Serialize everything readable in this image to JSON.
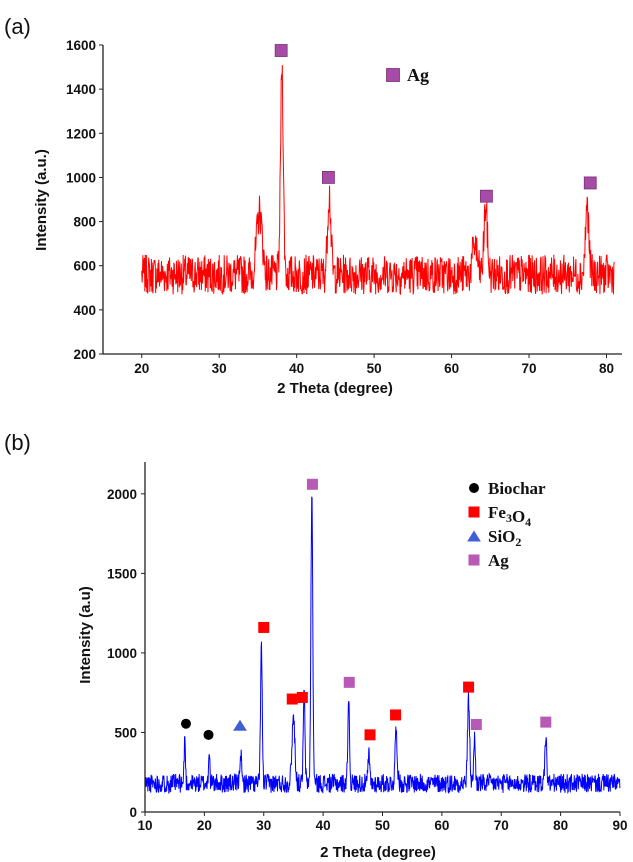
{
  "chart_data": [
    {
      "panel_label": "(a)",
      "type": "line",
      "color": "#ff0000",
      "xlabel": "2 Theta (degree)",
      "ylabel": "Intensity (a.u.)",
      "xlim": [
        15,
        82
      ],
      "ylim": [
        200,
        1600
      ],
      "xticks": [
        20,
        30,
        40,
        50,
        60,
        70,
        80
      ],
      "yticks": [
        200,
        400,
        600,
        800,
        1000,
        1200,
        1400,
        1600
      ],
      "grid": false,
      "x_range": [
        20,
        81
      ],
      "baseline": 560,
      "noise": 90,
      "peaks": [
        {
          "x": 35.2,
          "y": 840,
          "w": 0.5
        },
        {
          "x": 38.1,
          "y": 1500,
          "w": 0.25
        },
        {
          "x": 44.2,
          "y": 930,
          "w": 0.3
        },
        {
          "x": 63.0,
          "y": 700,
          "w": 0.4
        },
        {
          "x": 64.4,
          "y": 870,
          "w": 0.3
        },
        {
          "x": 77.5,
          "y": 870,
          "w": 0.3
        }
      ],
      "markers": [
        {
          "x": 38.0,
          "y": 1575,
          "phase": "Ag"
        },
        {
          "x": 44.1,
          "y": 1000,
          "phase": "Ag"
        },
        {
          "x": 64.5,
          "y": 915,
          "phase": "Ag"
        },
        {
          "x": 77.9,
          "y": 975,
          "phase": "Ag"
        }
      ],
      "legend": [
        {
          "label": "Ag",
          "color": "#a64ca6",
          "shape": "square"
        }
      ],
      "legend_position": "top-right"
    },
    {
      "panel_label": "(b)",
      "type": "line",
      "color": "#0000ff",
      "xlabel": "2 Theta (degree)",
      "ylabel": "Intensity (a.u)",
      "xlim": [
        10,
        90
      ],
      "ylim": [
        0,
        2200
      ],
      "xticks": [
        10,
        20,
        30,
        40,
        50,
        60,
        70,
        80,
        90
      ],
      "yticks": [
        0,
        500,
        1000,
        1500,
        2000
      ],
      "grid": false,
      "x_range": [
        10,
        90
      ],
      "baseline": 180,
      "noise": 60,
      "peaks": [
        {
          "x": 16.7,
          "y": 470,
          "w": 0.15
        },
        {
          "x": 20.8,
          "y": 400,
          "w": 0.15
        },
        {
          "x": 26.1,
          "y": 380,
          "w": 0.2
        },
        {
          "x": 29.6,
          "y": 1050,
          "w": 0.2
        },
        {
          "x": 35.0,
          "y": 600,
          "w": 0.35
        },
        {
          "x": 36.8,
          "y": 750,
          "w": 0.2
        },
        {
          "x": 38.1,
          "y": 1990,
          "w": 0.22
        },
        {
          "x": 44.3,
          "y": 720,
          "w": 0.2
        },
        {
          "x": 47.7,
          "y": 360,
          "w": 0.2
        },
        {
          "x": 52.3,
          "y": 520,
          "w": 0.25
        },
        {
          "x": 64.5,
          "y": 700,
          "w": 0.25
        },
        {
          "x": 65.5,
          "y": 460,
          "w": 0.2
        },
        {
          "x": 77.5,
          "y": 480,
          "w": 0.22
        }
      ],
      "markers": [
        {
          "x": 16.9,
          "y": 555,
          "phase": "Biochar"
        },
        {
          "x": 20.7,
          "y": 485,
          "phase": "Biochar"
        },
        {
          "x": 26.0,
          "y": 545,
          "phase": "SiO2"
        },
        {
          "x": 30.0,
          "y": 1160,
          "phase": "Fe3O4"
        },
        {
          "x": 34.8,
          "y": 710,
          "phase": "Fe3O4"
        },
        {
          "x": 36.5,
          "y": 720,
          "phase": "Fe3O4"
        },
        {
          "x": 38.2,
          "y": 2060,
          "phase": "Ag"
        },
        {
          "x": 44.4,
          "y": 815,
          "phase": "Ag"
        },
        {
          "x": 47.9,
          "y": 485,
          "phase": "Fe3O4"
        },
        {
          "x": 52.2,
          "y": 610,
          "phase": "Fe3O4"
        },
        {
          "x": 64.5,
          "y": 785,
          "phase": "Fe3O4"
        },
        {
          "x": 65.8,
          "y": 550,
          "phase": "Ag"
        },
        {
          "x": 77.5,
          "y": 565,
          "phase": "Ag"
        }
      ],
      "legend": [
        {
          "label": "Biochar",
          "color": "#000000",
          "shape": "circle",
          "parts": [
            {
              "t": "Biochar",
              "sub": false
            }
          ]
        },
        {
          "label": "Fe3O4",
          "color": "#ff0000",
          "shape": "square",
          "parts": [
            {
              "t": "Fe",
              "sub": false
            },
            {
              "t": "3",
              "sub": true
            },
            {
              "t": "O",
              "sub": false
            },
            {
              "t": "4",
              "sub": true
            }
          ]
        },
        {
          "label": "SiO2",
          "color": "#3f5fd8",
          "shape": "triangle",
          "parts": [
            {
              "t": "SiO",
              "sub": false
            },
            {
              "t": "2",
              "sub": true
            }
          ]
        },
        {
          "label": "Ag",
          "color": "#b65ab6",
          "shape": "square",
          "parts": [
            {
              "t": "Ag",
              "sub": false
            }
          ]
        }
      ],
      "legend_position": "top-right"
    }
  ]
}
